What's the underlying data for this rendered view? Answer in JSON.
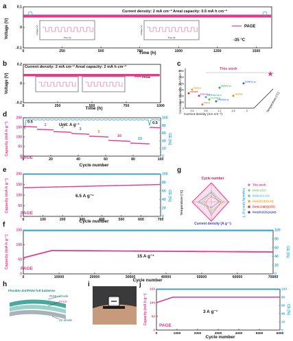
{
  "panels": {
    "a": {
      "letter": "a",
      "ylabel": "Voltage (V)",
      "xlabel": "Time (h)",
      "info": "Current density: 2 mA cm⁻²   Areal capacity: 0.5 mA h cm⁻²",
      "legend": "PAGE",
      "temp": "-35 °C",
      "inset1_label": "Voltage (V)",
      "inset1_x": "Time (h)",
      "inset2_label": "Voltage (V)",
      "inset2_x": "Time (h)"
    },
    "b": {
      "letter": "b",
      "ylabel": "Voltage (V)",
      "xlabel": "Time (h)",
      "info": "Current density: 2 mA cm⁻²   Areal capacity: 2 mA h cm⁻²",
      "legend": "PAGE"
    },
    "c": {
      "letter": "c",
      "ylabel": "Cumulative capacity (mA h cm⁻²)",
      "xlabel": "Current density (mA cm⁻²)",
      "zlabel": "Temperature (°C)",
      "this_work": "This work"
    },
    "d": {
      "letter": "d",
      "ylabel": "Capacity (mA h g⁻¹)",
      "y2label": "CE (%)",
      "xlabel": "Cycle number",
      "unit": "Unit: A g⁻¹",
      "tag": "PAGE"
    },
    "e": {
      "letter": "e",
      "ylabel": "Capacity (mA h g⁻¹)",
      "y2label": "CE (%)",
      "xlabel": "Cycle number",
      "rate": "6.5 A g⁻¹",
      "tag": "PAGE"
    },
    "f": {
      "letter": "f",
      "ylabel": "Capacity (mA h g⁻¹)",
      "y2label": "CE (%)",
      "xlabel": "Cycle number",
      "rate": "15 A g⁻¹",
      "tag": "PAGE"
    },
    "g": {
      "letter": "g",
      "top": "Cycle number",
      "bottom": "Current density (A g⁻¹)",
      "left": "Temperature (°C)",
      "right": "Capacity (mA h g⁻¹)"
    },
    "h": {
      "letter": "h",
      "title": "Flexible Zn//PANI full batteries",
      "l1": "PANI cathode",
      "l2": "PAGE",
      "l3": "Zn anode"
    },
    "i": {
      "letter": "i"
    },
    "j": {
      "letter": "j",
      "ylabel": "Capacity (mA h g⁻¹)",
      "y2label": "CE (%)",
      "xlabel": "Cycle number",
      "rate": "3 A g⁻¹",
      "tag": "PAGE"
    }
  },
  "colors": {
    "pink": "#e6388c",
    "cyan": "#29a9e0",
    "star": "#d9428a"
  },
  "chart_data": [
    {
      "id": "a",
      "type": "line",
      "xlim": [
        0,
        1600
      ],
      "ylim": [
        -0.1,
        0.1
      ],
      "xticks": [
        0,
        250,
        500,
        750,
        1000,
        1250,
        1500
      ],
      "yticks": [
        -0.1,
        0.0,
        0.1
      ]
    },
    {
      "id": "b",
      "type": "line",
      "xlim": [
        0,
        1000
      ],
      "ylim": [
        -0.2,
        0.2
      ],
      "xticks": [
        0,
        250,
        500,
        750,
        1000
      ],
      "yticks": [
        -0.2,
        0.0,
        0.2
      ]
    },
    {
      "id": "c",
      "type": "scatter",
      "xticks": [
        0.4,
        0.8,
        1.2,
        1.6,
        2.0
      ],
      "yticks": [
        0,
        500,
        1000,
        1500,
        2000,
        2500,
        3000
      ],
      "points": [
        {
          "label": "This work",
          "x": 2.0,
          "y": 3000
        },
        {
          "label": "ECNR.Zn pt",
          "x": 1.9,
          "y": 2000
        },
        {
          "label": "CMAR-C pt",
          "x": 1.2,
          "y": 1650
        },
        {
          "label": "PAM(Zn)",
          "x": 0.4,
          "y": 1500
        },
        {
          "label": "Zn/ZnPO",
          "x": 0.3,
          "y": 1200
        },
        {
          "label": "ECN-AQ pt",
          "x": 0.6,
          "y": 1000
        },
        {
          "label": "Zn(TFSI)2-Sb pt",
          "x": 0.8,
          "y": 900
        },
        {
          "label": "Zn(OTf)2",
          "x": 1.6,
          "y": 1000
        },
        {
          "label": "Zn-CCM pt",
          "x": 0.9,
          "y": 700
        },
        {
          "label": "EPBA(Zn) pt",
          "x": 1.1,
          "y": 550
        },
        {
          "label": "ZCE pt",
          "x": 0.7,
          "y": 300
        }
      ]
    },
    {
      "id": "d",
      "type": "line",
      "xlim": [
        0,
        100
      ],
      "ylim": [
        0,
        200
      ],
      "y2lim": [
        0,
        100
      ],
      "xticks": [
        0,
        20,
        40,
        60,
        80,
        100
      ],
      "yticks": [
        0,
        50,
        100,
        150,
        200
      ],
      "y2ticks": [
        0,
        20,
        40,
        60,
        80,
        100
      ],
      "rates": [
        "0.5",
        "1",
        "2",
        "3",
        "5",
        "10",
        "15",
        "0.5"
      ],
      "segments": [
        {
          "rate": "0.5",
          "x0": 0,
          "x1": 10,
          "cap": 155
        },
        {
          "rate": "1",
          "x0": 10,
          "x1": 22,
          "cap": 140
        },
        {
          "rate": "2",
          "x0": 22,
          "x1": 35,
          "cap": 128
        },
        {
          "rate": "3",
          "x0": 35,
          "x1": 48,
          "cap": 118
        },
        {
          "rate": "5",
          "x0": 48,
          "x1": 62,
          "cap": 104
        },
        {
          "rate": "10",
          "x0": 62,
          "x1": 78,
          "cap": 82
        },
        {
          "rate": "15",
          "x0": 78,
          "x1": 92,
          "cap": 68
        },
        {
          "rate": "0.5",
          "x0": 92,
          "x1": 100,
          "cap": 150
        }
      ],
      "ce": 95
    },
    {
      "id": "e",
      "type": "line",
      "xlim": [
        0,
        700
      ],
      "ylim": [
        0,
        200
      ],
      "y2lim": [
        0,
        100
      ],
      "xticks": [
        0,
        100,
        200,
        300,
        400,
        500,
        600,
        700
      ],
      "yticks": [
        0,
        50,
        100,
        150,
        200
      ],
      "y2ticks": [
        0,
        20,
        40,
        60,
        80,
        100
      ],
      "cap_start": 135,
      "cap_end": 150,
      "ce": 99
    },
    {
      "id": "f",
      "type": "line",
      "xlim": [
        0,
        70000
      ],
      "ylim": [
        0,
        150
      ],
      "y2lim": [
        0,
        100
      ],
      "xticks": [
        0,
        10000,
        20000,
        30000,
        40000,
        50000,
        60000,
        70000
      ],
      "yticks": [
        0,
        50,
        100,
        150
      ],
      "y2ticks": [
        0,
        20,
        40,
        60,
        80,
        100
      ],
      "cap_start": 55,
      "cap_mid": 80,
      "cap_end": 75,
      "ce": 99
    },
    {
      "id": "g",
      "type": "radar",
      "axes": [
        "Cycle number",
        "Capacity (mA h g⁻¹)",
        "Current density (A g⁻¹)",
        "Temperature (°C)"
      ],
      "series": [
        {
          "name": "This work",
          "values": [
            1.0,
            0.9,
            1.0,
            1.0
          ]
        },
        {
          "name": "PANI-ZSO",
          "values": [
            0.5,
            0.6,
            0.5,
            0.6
          ]
        },
        {
          "name": "PANI-CS-A/C",
          "values": [
            0.6,
            0.5,
            0.6,
            0.4
          ]
        },
        {
          "name": "PANI/Zn3(OCH)",
          "values": [
            0.4,
            0.7,
            0.4,
            0.5
          ]
        },
        {
          "name": "PANI-3-MO(CFP)",
          "values": [
            0.3,
            0.5,
            0.7,
            0.3
          ]
        },
        {
          "name": "PANI/V2O5@GNS",
          "values": [
            0.5,
            0.4,
            0.3,
            0.7
          ]
        }
      ],
      "scale": [
        0.3,
        0.6,
        0.9
      ]
    },
    {
      "id": "j",
      "type": "line",
      "xlim": [
        0,
        6000
      ],
      "ylim": [
        0,
        150
      ],
      "y2lim": [
        0,
        100
      ],
      "xticks": [
        0,
        1000,
        2000,
        3000,
        4000,
        5000,
        6000
      ],
      "yticks": [
        0,
        50,
        100,
        150
      ],
      "y2ticks": [
        0,
        20,
        40,
        60,
        80,
        100
      ],
      "cap_start": 100,
      "cap_end": 120,
      "ce": 99
    }
  ]
}
